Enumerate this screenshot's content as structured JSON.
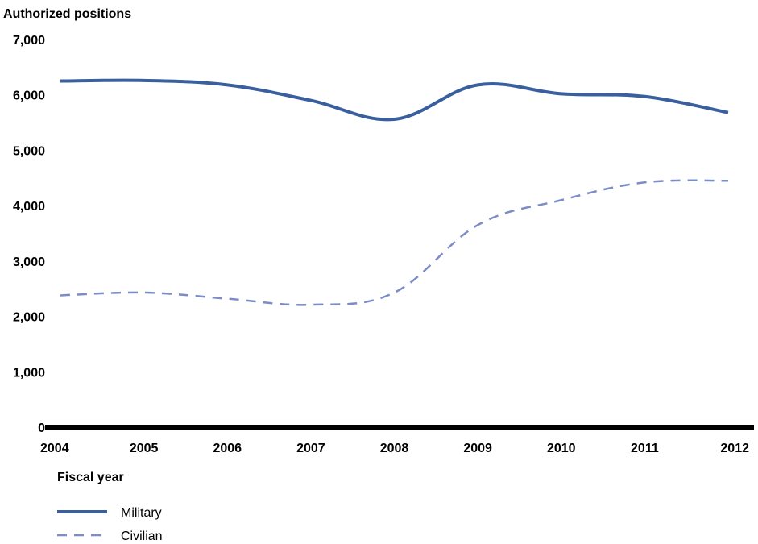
{
  "chart_data": {
    "type": "line",
    "ylabel": "Authorized positions",
    "xlabel": "Fiscal year",
    "ylim": [
      0,
      7000
    ],
    "yticks": [
      0,
      1000,
      2000,
      3000,
      4000,
      5000,
      6000,
      7000
    ],
    "ytick_labels": [
      "0",
      "1,000",
      "2,000",
      "3,000",
      "4,000",
      "5,000",
      "6,000",
      "7,000"
    ],
    "x": [
      "2004",
      "2005",
      "2006",
      "2007",
      "2008",
      "2009",
      "2010",
      "2011",
      "2012"
    ],
    "grid": false,
    "legend_position": "bottom-left",
    "series": [
      {
        "name": "Military",
        "style": "solid",
        "color": "#3a5f9e",
        "values": [
          6250,
          6260,
          6180,
          5900,
          5560,
          6180,
          6020,
          5970,
          5680
        ]
      },
      {
        "name": "Civilian",
        "style": "dashed",
        "color": "#7b8cc6",
        "values": [
          2380,
          2430,
          2320,
          2210,
          2430,
          3650,
          4100,
          4420,
          4450
        ]
      }
    ]
  }
}
